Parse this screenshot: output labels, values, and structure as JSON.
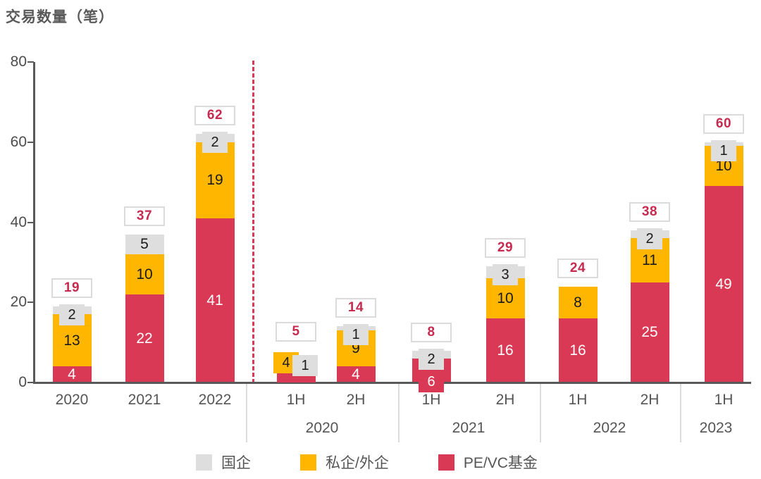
{
  "title": "交易数量（笔）",
  "y_axis": {
    "min": 0,
    "max": 80,
    "ticks": [
      0,
      20,
      40,
      60,
      80
    ]
  },
  "legend": [
    {
      "key": "soe",
      "label": "国企",
      "color": "#DEDEDE"
    },
    {
      "key": "private",
      "label": "私企/外企",
      "color": "#FFB600"
    },
    {
      "key": "pe_vc",
      "label": "PE/VC基金",
      "color": "#D93954"
    }
  ],
  "colors": {
    "soe": "#DEDEDE",
    "private": "#FFB600",
    "pe_vc": "#D93954",
    "total_text": "#C62A4F",
    "axis": "#595959",
    "divider": "#DCDCDC"
  },
  "chart_data": {
    "type": "bar",
    "stacked": true,
    "title": "交易数量（笔）",
    "ylabel": "交易数量（笔）",
    "ylim": [
      0,
      80
    ],
    "y_ticks": [
      0,
      20,
      40,
      60,
      80
    ],
    "grid": false,
    "legend_position": "bottom",
    "stack_order_bottom_to_top": [
      "pe_vc",
      "private",
      "soe"
    ],
    "series_names": {
      "pe_vc": "PE/VC基金",
      "private": "私企/外企",
      "soe": "国企"
    },
    "bars": [
      {
        "x_label": "2020",
        "group": "",
        "pe_vc": 4,
        "private": 13,
        "soe": 2,
        "total": 19
      },
      {
        "x_label": "2021",
        "group": "",
        "pe_vc": 22,
        "private": 10,
        "soe": 5,
        "total": 37
      },
      {
        "x_label": "2022",
        "group": "",
        "pe_vc": 41,
        "private": 19,
        "soe": 2,
        "total": 62
      },
      {
        "x_label": "1H",
        "group": "2020",
        "pe_vc": 0,
        "private": 4,
        "soe": 1,
        "total": 5
      },
      {
        "x_label": "2H",
        "group": "2020",
        "pe_vc": 4,
        "private": 9,
        "soe": 1,
        "total": 14
      },
      {
        "x_label": "1H",
        "group": "2021",
        "pe_vc": 6,
        "private": 0,
        "soe": 2,
        "total": 8
      },
      {
        "x_label": "2H",
        "group": "2021",
        "pe_vc": 16,
        "private": 10,
        "soe": 3,
        "total": 29
      },
      {
        "x_label": "1H",
        "group": "2022",
        "pe_vc": 16,
        "private": 8,
        "soe": 0,
        "total": 24
      },
      {
        "x_label": "2H",
        "group": "2022",
        "pe_vc": 25,
        "private": 11,
        "soe": 2,
        "total": 38
      },
      {
        "x_label": "1H",
        "group": "2023",
        "pe_vc": 49,
        "private": 10,
        "soe": 1,
        "total": 60
      }
    ],
    "group_labels": [
      "2020",
      "2021",
      "2022",
      "2023"
    ],
    "annual_vs_half_separator": {
      "style": "red-dashed-vertical-line",
      "after_bar": "2022"
    },
    "label_layout": {
      "0": {
        "soe": {
          "style": "callout"
        }
      },
      "2": {
        "soe": {
          "style": "callout"
        }
      },
      "3": {
        "private": {
          "style": "callout",
          "dx": -14,
          "dy": -17
        },
        "soe": {
          "style": "callout",
          "dx": 13,
          "dy": -8
        },
        "pe_vc": {
          "style": "zero_stub"
        }
      },
      "4": {
        "soe": {
          "style": "callout"
        }
      },
      "5": {
        "soe": {
          "style": "callout"
        },
        "pe_vc": {
          "style": "below_axis_callout"
        }
      },
      "6": {
        "soe": {
          "style": "callout"
        }
      },
      "8": {
        "soe": {
          "style": "callout"
        }
      },
      "9": {
        "soe": {
          "style": "callout"
        }
      }
    }
  }
}
